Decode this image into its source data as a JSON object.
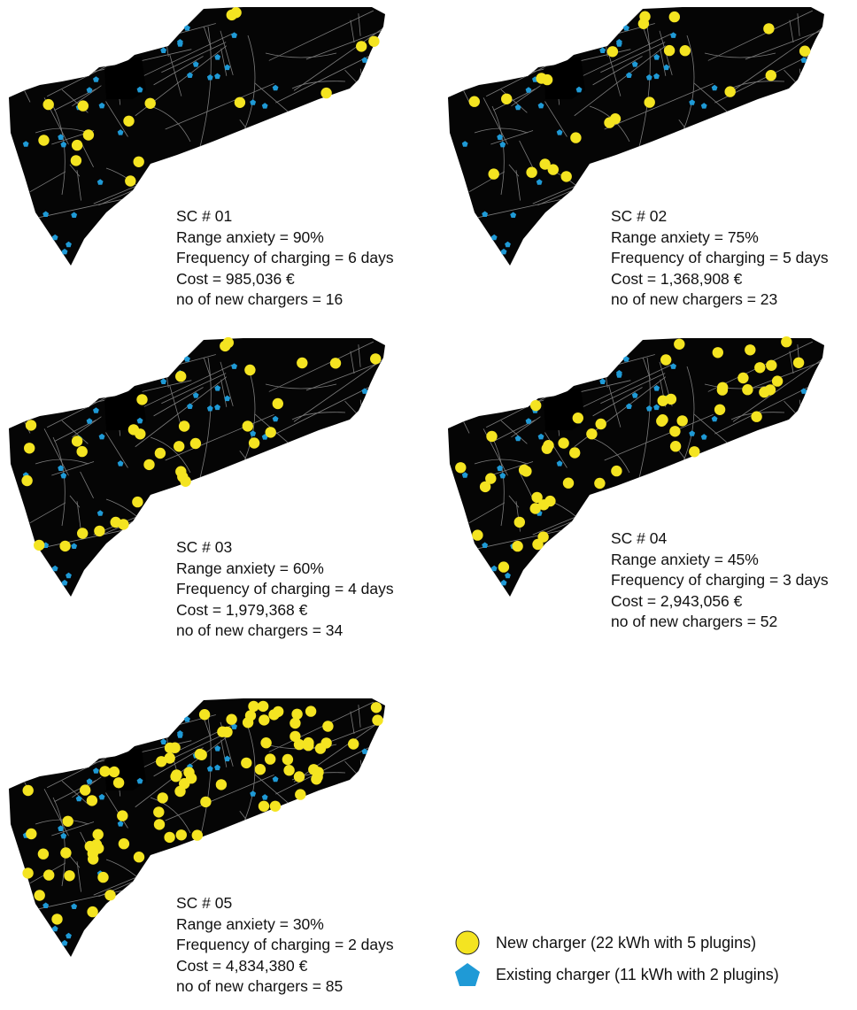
{
  "colors": {
    "map_fill": "#050505",
    "road": "#7c7c7c",
    "new_charger": "#f4e421",
    "existing_charger": "#1f9ad6"
  },
  "scenarios": [
    {
      "id": "SC # 01",
      "range_anxiety": "Range anxiety = 90%",
      "frequency": "Frequency of charging = 6 days",
      "cost": "Cost = 985,036 €",
      "new_chargers": "no of new chargers = 16",
      "new_charger_count": 16
    },
    {
      "id": "SC # 02",
      "range_anxiety": "Range anxiety = 75%",
      "frequency": "Frequency of charging = 5 days",
      "cost": "Cost = 1,368,908 €",
      "new_chargers": "no of new chargers = 23",
      "new_charger_count": 23
    },
    {
      "id": "SC # 03",
      "range_anxiety": "Range anxiety = 60%",
      "frequency": "Frequency of charging = 4 days",
      "cost": "Cost = 1,979,368 €",
      "new_chargers": "no of new chargers = 34",
      "new_charger_count": 34
    },
    {
      "id": "SC # 04",
      "range_anxiety": "Range anxiety = 45%",
      "frequency": "Frequency of charging = 3 days",
      "cost": "Cost = 2,943,056 €",
      "new_chargers": "no of new chargers = 52",
      "new_charger_count": 52
    },
    {
      "id": "SC # 05",
      "range_anxiety": "Range anxiety = 30%",
      "frequency": "Frequency of charging = 2 days",
      "cost": "Cost = 4,834,380 €",
      "new_chargers": "no of new chargers = 85",
      "new_charger_count": 85
    }
  ],
  "legend": {
    "new_charger": "New charger  (22 kWh with 5 plugins)",
    "existing_charger": "Existing charger (11 kWh with 2 plugins)"
  }
}
